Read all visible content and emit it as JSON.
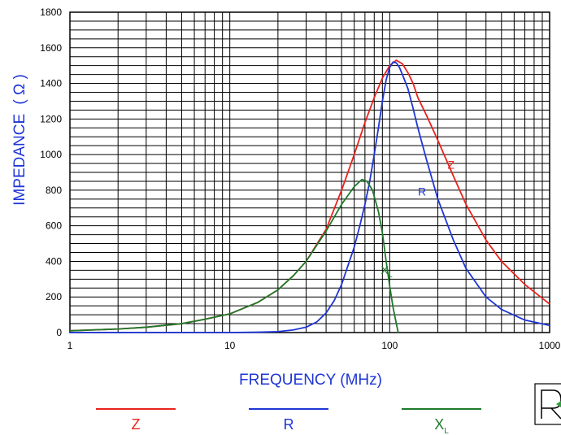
{
  "chart_data": {
    "type": "line",
    "xlabel": "FREQUENCY (MHz)",
    "ylabel_main": "IMPEDANCE",
    "ylabel_unit": "( Ω )",
    "x_scale": "log",
    "xlim": [
      1,
      1000
    ],
    "ylim": [
      0,
      1800
    ],
    "grid": true,
    "x_ticks": [
      {
        "value": 1,
        "label": "1"
      },
      {
        "value": 10,
        "label": "10"
      },
      {
        "value": 100,
        "label": "100"
      },
      {
        "value": 1000,
        "label": "1000"
      }
    ],
    "y_ticks": [
      {
        "value": 0,
        "label": "0"
      },
      {
        "value": 200,
        "label": "200"
      },
      {
        "value": 400,
        "label": "400"
      },
      {
        "value": 600,
        "label": "600"
      },
      {
        "value": 800,
        "label": "800"
      },
      {
        "value": 1000,
        "label": "1000"
      },
      {
        "value": 1200,
        "label": "1200"
      },
      {
        "value": 1400,
        "label": "1400"
      },
      {
        "value": 1600,
        "label": "1600"
      },
      {
        "value": 1800,
        "label": "1800"
      }
    ],
    "legend_placement": "bottom",
    "series": [
      {
        "name": "Z",
        "color": "#e8231d",
        "label": {
          "text": "Z",
          "sub": "",
          "at": [
            230,
            920
          ]
        },
        "points": [
          [
            1,
            10
          ],
          [
            2,
            20
          ],
          [
            3,
            30
          ],
          [
            5,
            50
          ],
          [
            7,
            75
          ],
          [
            10,
            105
          ],
          [
            15,
            170
          ],
          [
            20,
            240
          ],
          [
            25,
            320
          ],
          [
            30,
            400
          ],
          [
            40,
            580
          ],
          [
            50,
            800
          ],
          [
            60,
            1000
          ],
          [
            70,
            1180
          ],
          [
            80,
            1320
          ],
          [
            90,
            1430
          ],
          [
            100,
            1500
          ],
          [
            110,
            1530
          ],
          [
            120,
            1510
          ],
          [
            130,
            1460
          ],
          [
            140,
            1400
          ],
          [
            150,
            1320
          ],
          [
            170,
            1220
          ],
          [
            200,
            1080
          ],
          [
            250,
            880
          ],
          [
            300,
            720
          ],
          [
            400,
            520
          ],
          [
            500,
            400
          ],
          [
            700,
            270
          ],
          [
            1000,
            160
          ]
        ]
      },
      {
        "name": "R",
        "color": "#1f36d6",
        "label": {
          "text": "R",
          "sub": "",
          "at": [
            150,
            770
          ]
        },
        "points": [
          [
            1,
            0
          ],
          [
            10,
            0
          ],
          [
            15,
            2
          ],
          [
            20,
            5
          ],
          [
            25,
            15
          ],
          [
            30,
            30
          ],
          [
            35,
            60
          ],
          [
            40,
            110
          ],
          [
            45,
            180
          ],
          [
            50,
            270
          ],
          [
            55,
            380
          ],
          [
            60,
            480
          ],
          [
            65,
            600
          ],
          [
            70,
            720
          ],
          [
            75,
            850
          ],
          [
            80,
            1000
          ],
          [
            85,
            1150
          ],
          [
            90,
            1300
          ],
          [
            95,
            1420
          ],
          [
            100,
            1490
          ],
          [
            105,
            1520
          ],
          [
            110,
            1515
          ],
          [
            115,
            1490
          ],
          [
            120,
            1450
          ],
          [
            130,
            1370
          ],
          [
            140,
            1260
          ],
          [
            150,
            1150
          ],
          [
            170,
            970
          ],
          [
            200,
            750
          ],
          [
            250,
            520
          ],
          [
            300,
            360
          ],
          [
            400,
            200
          ],
          [
            500,
            130
          ],
          [
            700,
            70
          ],
          [
            1000,
            40
          ]
        ]
      },
      {
        "name": "X",
        "color": "#1f7a2a",
        "label": {
          "text": "X",
          "sub": "L",
          "at": [
            88,
            330
          ]
        },
        "points": [
          [
            1,
            10
          ],
          [
            2,
            20
          ],
          [
            3,
            30
          ],
          [
            5,
            50
          ],
          [
            7,
            75
          ],
          [
            10,
            105
          ],
          [
            15,
            170
          ],
          [
            20,
            240
          ],
          [
            25,
            320
          ],
          [
            30,
            400
          ],
          [
            40,
            570
          ],
          [
            50,
            720
          ],
          [
            60,
            820
          ],
          [
            67,
            860
          ],
          [
            72,
            850
          ],
          [
            78,
            800
          ],
          [
            85,
            680
          ],
          [
            90,
            560
          ],
          [
            95,
            400
          ],
          [
            100,
            260
          ],
          [
            105,
            140
          ],
          [
            110,
            50
          ],
          [
            113,
            0
          ]
        ]
      }
    ]
  },
  "legend": [
    {
      "key": "Z",
      "text": "Z",
      "sub": "",
      "color": "#e8231d"
    },
    {
      "key": "R",
      "text": "R",
      "sub": "",
      "color": "#1f36d6"
    },
    {
      "key": "X",
      "text": "X",
      "sub": "L",
      "color": "#1f7a2a"
    }
  ],
  "colors": {
    "axis_title": "#1f36d6",
    "grid": "#000000"
  }
}
